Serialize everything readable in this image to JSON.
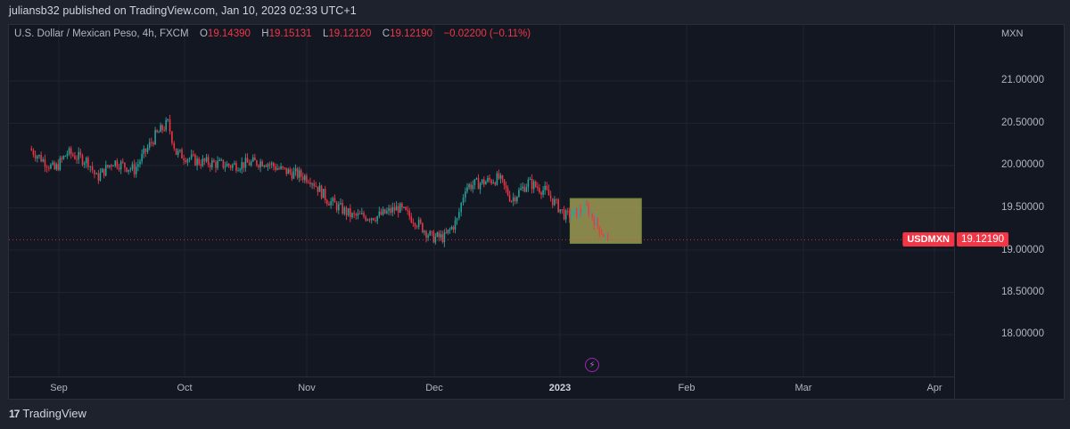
{
  "header": {
    "publish_text": "juliansb32 published on TradingView.com, Jan 10, 2023 02:33 UTC+1"
  },
  "legend": {
    "symbol_desc": "U.S. Dollar / Mexican Peso, 4h, FXCM",
    "open_label": "O",
    "open": "19.14390",
    "high_label": "H",
    "high": "19.15131",
    "low_label": "L",
    "low": "19.12120",
    "close_label": "C",
    "close": "19.12190",
    "change": "−0.02200 (−0.11%)"
  },
  "price_axis": {
    "currency": "MXN",
    "ticks": [
      "21.00000",
      "20.50000",
      "20.00000",
      "19.50000",
      "19.00000",
      "18.50000",
      "18.00000"
    ]
  },
  "time_axis": {
    "ticks": [
      "Sep",
      "Oct",
      "Nov",
      "Dec",
      "2023",
      "Feb",
      "Mar",
      "Apr"
    ]
  },
  "last_price": {
    "symbol": "USDMXN",
    "value": "19.12190"
  },
  "footer": {
    "logo": "17",
    "brand": "TradingView"
  },
  "icons": {
    "event": "lightning-icon"
  },
  "colors": {
    "background": "#131722",
    "frame": "#1e222d",
    "up": "#26a69a",
    "down": "#f23645",
    "grid": "#1f2330",
    "highlight_box": "#9e9a52",
    "event_icon": "#9c27b0"
  },
  "chart_data": {
    "type": "candlestick",
    "title": "U.S. Dollar / Mexican Peso, 4h, FXCM",
    "symbol": "USDMXN",
    "timeframe": "4h",
    "xlabel": "",
    "ylabel": "MXN",
    "ylim": [
      17.8,
      21.3
    ],
    "grid": true,
    "x_ticks": [
      "Sep",
      "Oct",
      "Nov",
      "Dec",
      "2023",
      "Feb",
      "Mar",
      "Apr"
    ],
    "y_ticks": [
      18.0,
      18.5,
      19.0,
      19.5,
      20.0,
      20.5,
      21.0
    ],
    "ohlc_last": {
      "open": 19.1439,
      "high": 19.15131,
      "low": 19.1212,
      "close": 19.1219,
      "change": -0.022,
      "change_pct": -0.11
    },
    "trend_path": [
      {
        "date": "2022-08-25",
        "price": 20.2
      },
      {
        "date": "2022-08-31",
        "price": 19.95
      },
      {
        "date": "2022-09-03",
        "price": 20.15
      },
      {
        "date": "2022-09-08",
        "price": 20.05
      },
      {
        "date": "2022-09-10",
        "price": 19.85
      },
      {
        "date": "2022-09-14",
        "price": 20.05
      },
      {
        "date": "2022-09-19",
        "price": 19.95
      },
      {
        "date": "2022-09-24",
        "price": 20.35
      },
      {
        "date": "2022-09-27",
        "price": 20.5
      },
      {
        "date": "2022-09-29",
        "price": 20.15
      },
      {
        "date": "2022-10-04",
        "price": 20.05
      },
      {
        "date": "2022-10-12",
        "price": 20.0
      },
      {
        "date": "2022-10-20",
        "price": 20.05
      },
      {
        "date": "2022-10-24",
        "price": 19.95
      },
      {
        "date": "2022-10-31",
        "price": 19.85
      },
      {
        "date": "2022-11-04",
        "price": 19.6
      },
      {
        "date": "2022-11-10",
        "price": 19.4
      },
      {
        "date": "2022-11-16",
        "price": 19.4
      },
      {
        "date": "2022-11-21",
        "price": 19.5
      },
      {
        "date": "2022-11-25",
        "price": 19.35
      },
      {
        "date": "2022-11-29",
        "price": 19.15
      },
      {
        "date": "2022-12-02",
        "price": 19.15
      },
      {
        "date": "2022-12-05",
        "price": 19.35
      },
      {
        "date": "2022-12-07",
        "price": 19.75
      },
      {
        "date": "2022-12-11",
        "price": 19.8
      },
      {
        "date": "2022-12-15",
        "price": 19.85
      },
      {
        "date": "2022-12-18",
        "price": 19.6
      },
      {
        "date": "2022-12-22",
        "price": 19.8
      },
      {
        "date": "2022-12-26",
        "price": 19.7
      },
      {
        "date": "2022-12-31",
        "price": 19.4
      },
      {
        "date": "2023-01-03",
        "price": 19.45
      },
      {
        "date": "2023-01-05",
        "price": 19.5
      },
      {
        "date": "2023-01-08",
        "price": 19.25
      },
      {
        "date": "2023-01-10",
        "price": 19.12
      }
    ],
    "annotations": [
      {
        "type": "rectangle",
        "x_from": "2023-01-01",
        "x_to": "2023-01-18",
        "y_from": 19.08,
        "y_to": 19.61,
        "color": "#9e9a52"
      },
      {
        "type": "horizontal_line",
        "y": 19.1219,
        "style": "dotted",
        "color": "#f23645",
        "label": "USDMXN 19.12190"
      }
    ]
  }
}
